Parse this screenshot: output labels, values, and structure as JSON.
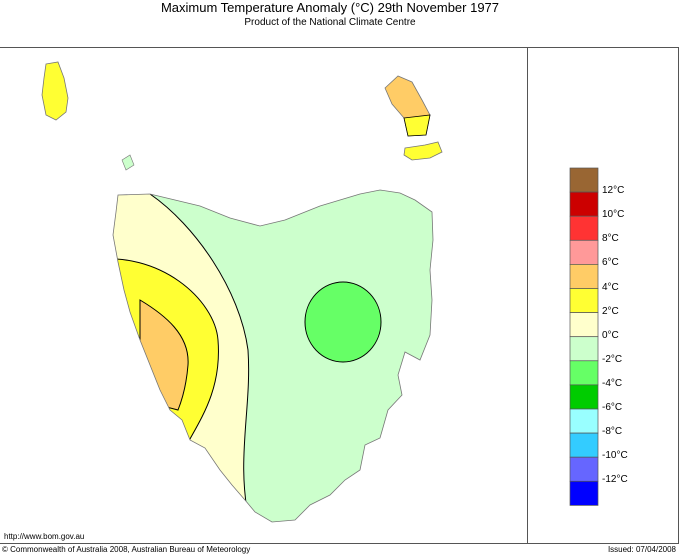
{
  "header": {
    "title": "Maximum Temperature Anomaly (°C)  29th November 1977",
    "subtitle": "Product of the National Climate Centre"
  },
  "footer": {
    "url": "http://www.bom.gov.au",
    "copyright": "© Commonwealth of Australia 2008, Australian Bureau of Meteorology",
    "issued": "Issued: 07/04/2008"
  },
  "legend": {
    "colors": [
      "#996633",
      "#cc0000",
      "#ff3333",
      "#ff9999",
      "#ffcc66",
      "#ffff33",
      "#ffffcc",
      "#ccffcc",
      "#66ff66",
      "#00cc00",
      "#99ffff",
      "#33ccff",
      "#6666ff",
      "#0000ff"
    ],
    "labels": [
      "12°C",
      "10°C",
      "8°C",
      "6°C",
      "4°C",
      "2°C",
      "0°C",
      "-2°C",
      "-4°C",
      "-6°C",
      "-8°C",
      "-10°C",
      "-12°C"
    ]
  },
  "map": {
    "region": "Tasmania",
    "colors": {
      "anomaly_-2_to_0": "#ccffcc",
      "anomaly_-4_to_-2": "#66ff66",
      "anomaly_0_to_2": "#ffffcc",
      "anomaly_2_to_4": "#ffff33",
      "anomaly_4_to_6": "#ffcc66"
    }
  }
}
